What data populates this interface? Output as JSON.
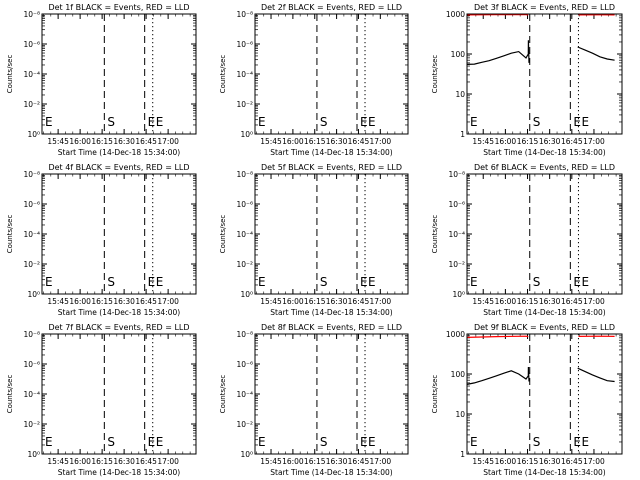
{
  "chart_data": [
    {
      "type": "line",
      "title": "Det 1f BLACK = Events, RED = LLD",
      "ylabel": "Counts/sec",
      "xlabel": "Start Time (14-Dec-18 15:34:00)",
      "yscale": "log",
      "ylim_exp": [
        0,
        -8
      ],
      "ytick_labels": [
        "10⁰",
        "10⁻²",
        "10⁻⁴",
        "10⁻⁶",
        "10⁻⁸"
      ],
      "xtick_labels": [
        "15:45",
        "16:00",
        "16:15",
        "16:30",
        "16:45",
        "17:00"
      ],
      "xlim_min": [
        0,
        105
      ],
      "xtick_min": [
        11,
        26,
        41,
        56,
        71,
        86
      ],
      "markers": [
        {
          "label": "E",
          "t": 0,
          "style": "dotted"
        },
        {
          "label": "S",
          "t": 42.5,
          "style": "dashed"
        },
        {
          "label": "E",
          "t": 70,
          "style": "dashed"
        },
        {
          "label": "E",
          "t": 75.5,
          "style": "dotted"
        }
      ],
      "series": []
    },
    {
      "type": "line",
      "title": "Det 2f BLACK = Events, RED = LLD",
      "ylabel": "Counts/sec",
      "xlabel": "Start Time (14-Dec-18 15:34:00)",
      "yscale": "log",
      "ylim_exp": [
        0,
        -8
      ],
      "ytick_labels": [
        "10⁰",
        "10⁻²",
        "10⁻⁴",
        "10⁻⁶",
        "10⁻⁸"
      ],
      "xtick_labels": [
        "15:45",
        "16:00",
        "16:15",
        "16:30",
        "16:45",
        "17:00"
      ],
      "xlim_min": [
        0,
        105
      ],
      "xtick_min": [
        11,
        26,
        41,
        56,
        71,
        86
      ],
      "markers": [
        {
          "label": "E",
          "t": 0,
          "style": "dotted"
        },
        {
          "label": "S",
          "t": 42.5,
          "style": "dashed"
        },
        {
          "label": "E",
          "t": 70,
          "style": "dashed"
        },
        {
          "label": "E",
          "t": 75.5,
          "style": "dotted"
        }
      ],
      "series": []
    },
    {
      "type": "line",
      "title": "Det 3f BLACK = Events, RED = LLD",
      "ylabel": "Counts/sec",
      "xlabel": "Start Time (14-Dec-18 15:34:00)",
      "yscale": "log",
      "ylim_exp": [
        0,
        3
      ],
      "ytick_labels": [
        "1",
        "10",
        "100",
        "1000"
      ],
      "xtick_labels": [
        "15:45",
        "16:00",
        "16:15",
        "16:30",
        "16:45",
        "17:00"
      ],
      "xlim_min": [
        0,
        105
      ],
      "xtick_min": [
        11,
        26,
        41,
        56,
        71,
        86
      ],
      "markers": [
        {
          "label": "E",
          "t": 0,
          "style": "dotted"
        },
        {
          "label": "S",
          "t": 42.5,
          "style": "dashed"
        },
        {
          "label": "E",
          "t": 70,
          "style": "dashed"
        },
        {
          "label": "E",
          "t": 75.5,
          "style": "dotted"
        }
      ],
      "series": [
        {
          "color": "#000000",
          "t": [
            0,
            5,
            10,
            15,
            20,
            25,
            30,
            35,
            40,
            41.5,
            41.6,
            42
          ],
          "v": [
            55,
            56,
            62,
            68,
            78,
            90,
            105,
            115,
            80,
            100,
            220,
            60
          ]
        },
        {
          "color": "#000000",
          "t": [
            75,
            80,
            85,
            90,
            95,
            100
          ],
          "v": [
            150,
            125,
            105,
            85,
            75,
            70
          ]
        },
        {
          "color": "#ff0000",
          "t": [
            0,
            20,
            40,
            41.5
          ],
          "v": [
            950,
            960,
            960,
            950
          ]
        },
        {
          "color": "#ff0000",
          "t": [
            75.5,
            90,
            100
          ],
          "v": [
            950,
            955,
            950
          ]
        }
      ]
    },
    {
      "type": "line",
      "title": "Det 4f BLACK = Events, RED = LLD",
      "ylabel": "Counts/sec",
      "xlabel": "Start Time (14-Dec-18 15:34:00)",
      "yscale": "log",
      "ylim_exp": [
        0,
        -8
      ],
      "ytick_labels": [
        "10⁰",
        "10⁻²",
        "10⁻⁴",
        "10⁻⁶",
        "10⁻⁸"
      ],
      "xtick_labels": [
        "15:45",
        "16:00",
        "16:15",
        "16:30",
        "16:45",
        "17:00"
      ],
      "xlim_min": [
        0,
        105
      ],
      "xtick_min": [
        11,
        26,
        41,
        56,
        71,
        86
      ],
      "markers": [
        {
          "label": "E",
          "t": 0,
          "style": "dotted"
        },
        {
          "label": "S",
          "t": 42.5,
          "style": "dashed"
        },
        {
          "label": "E",
          "t": 70,
          "style": "dashed"
        },
        {
          "label": "E",
          "t": 75.5,
          "style": "dotted"
        }
      ],
      "series": []
    },
    {
      "type": "line",
      "title": "Det 5f BLACK = Events, RED = LLD",
      "ylabel": "Counts/sec",
      "xlabel": "Start Time (14-Dec-18 15:34:00)",
      "yscale": "log",
      "ylim_exp": [
        0,
        -8
      ],
      "ytick_labels": [
        "10⁰",
        "10⁻²",
        "10⁻⁴",
        "10⁻⁶",
        "10⁻⁸"
      ],
      "xtick_labels": [
        "15:45",
        "16:00",
        "16:15",
        "16:30",
        "16:45",
        "17:00"
      ],
      "xlim_min": [
        0,
        105
      ],
      "xtick_min": [
        11,
        26,
        41,
        56,
        71,
        86
      ],
      "markers": [
        {
          "label": "E",
          "t": 0,
          "style": "dotted"
        },
        {
          "label": "S",
          "t": 42.5,
          "style": "dashed"
        },
        {
          "label": "E",
          "t": 70,
          "style": "dashed"
        },
        {
          "label": "E",
          "t": 75.5,
          "style": "dotted"
        }
      ],
      "series": []
    },
    {
      "type": "line",
      "title": "Det 6f BLACK = Events, RED = LLD",
      "ylabel": "Counts/sec",
      "xlabel": "Start Time (14-Dec-18 15:34:00)",
      "yscale": "log",
      "ylim_exp": [
        0,
        -8
      ],
      "ytick_labels": [
        "10⁰",
        "10⁻²",
        "10⁻⁴",
        "10⁻⁶",
        "10⁻⁸"
      ],
      "xtick_labels": [
        "15:45",
        "16:00",
        "16:15",
        "16:30",
        "16:45",
        "17:00"
      ],
      "xlim_min": [
        0,
        105
      ],
      "xtick_min": [
        11,
        26,
        41,
        56,
        71,
        86
      ],
      "markers": [
        {
          "label": "E",
          "t": 0,
          "style": "dotted"
        },
        {
          "label": "S",
          "t": 42.5,
          "style": "dashed"
        },
        {
          "label": "E",
          "t": 70,
          "style": "dashed"
        },
        {
          "label": "E",
          "t": 75.5,
          "style": "dotted"
        }
      ],
      "series": []
    },
    {
      "type": "line",
      "title": "Det 7f BLACK = Events, RED = LLD",
      "ylabel": "Counts/sec",
      "xlabel": "Start Time (14-Dec-18 15:34:00)",
      "yscale": "log",
      "ylim_exp": [
        0,
        -8
      ],
      "ytick_labels": [
        "10⁰",
        "10⁻²",
        "10⁻⁴",
        "10⁻⁶",
        "10⁻⁸"
      ],
      "xtick_labels": [
        "15:45",
        "16:00",
        "16:15",
        "16:30",
        "16:45",
        "17:00"
      ],
      "xlim_min": [
        0,
        105
      ],
      "xtick_min": [
        11,
        26,
        41,
        56,
        71,
        86
      ],
      "markers": [
        {
          "label": "E",
          "t": 0,
          "style": "dotted"
        },
        {
          "label": "S",
          "t": 42.5,
          "style": "dashed"
        },
        {
          "label": "E",
          "t": 70,
          "style": "dashed"
        },
        {
          "label": "E",
          "t": 75.5,
          "style": "dotted"
        }
      ],
      "series": []
    },
    {
      "type": "line",
      "title": "Det 8f BLACK = Events, RED = LLD",
      "ylabel": "Counts/sec",
      "xlabel": "Start Time (14-Dec-18 15:34:00)",
      "yscale": "log",
      "ylim_exp": [
        0,
        -8
      ],
      "ytick_labels": [
        "10⁰",
        "10⁻²",
        "10⁻⁴",
        "10⁻⁶",
        "10⁻⁸"
      ],
      "xtick_labels": [
        "15:45",
        "16:00",
        "16:15",
        "16:30",
        "16:45",
        "17:00"
      ],
      "xlim_min": [
        0,
        105
      ],
      "xtick_min": [
        11,
        26,
        41,
        56,
        71,
        86
      ],
      "markers": [
        {
          "label": "E",
          "t": 0,
          "style": "dotted"
        },
        {
          "label": "S",
          "t": 42.5,
          "style": "dashed"
        },
        {
          "label": "E",
          "t": 70,
          "style": "dashed"
        },
        {
          "label": "E",
          "t": 75.5,
          "style": "dotted"
        }
      ],
      "series": []
    },
    {
      "type": "line",
      "title": "Det 9f BLACK = Events, RED = LLD",
      "ylabel": "Counts/sec",
      "xlabel": "Start Time (14-Dec-18 15:34:00)",
      "yscale": "log",
      "ylim_exp": [
        0,
        3
      ],
      "ytick_labels": [
        "1",
        "10",
        "100",
        "1000"
      ],
      "xtick_labels": [
        "15:45",
        "16:00",
        "16:15",
        "16:30",
        "16:45",
        "17:00"
      ],
      "xlim_min": [
        0,
        105
      ],
      "xtick_min": [
        11,
        26,
        41,
        56,
        71,
        86
      ],
      "markers": [
        {
          "label": "E",
          "t": 0,
          "style": "dotted"
        },
        {
          "label": "S",
          "t": 42.5,
          "style": "dashed"
        },
        {
          "label": "E",
          "t": 70,
          "style": "dashed"
        },
        {
          "label": "E",
          "t": 75.5,
          "style": "dotted"
        }
      ],
      "series": [
        {
          "color": "#000000",
          "t": [
            0,
            5,
            10,
            15,
            20,
            25,
            30,
            35,
            40,
            41.5,
            41.6,
            42
          ],
          "v": [
            55,
            60,
            68,
            78,
            90,
            105,
            120,
            100,
            75,
            90,
            150,
            65
          ]
        },
        {
          "color": "#000000",
          "t": [
            75,
            80,
            85,
            90,
            95,
            100
          ],
          "v": [
            140,
            115,
            95,
            80,
            68,
            65
          ]
        },
        {
          "color": "#ff0000",
          "t": [
            0,
            20,
            40,
            41.5
          ],
          "v": [
            820,
            860,
            880,
            860
          ]
        },
        {
          "color": "#ff0000",
          "t": [
            75.5,
            90,
            100
          ],
          "v": [
            870,
            880,
            870
          ]
        }
      ]
    }
  ]
}
